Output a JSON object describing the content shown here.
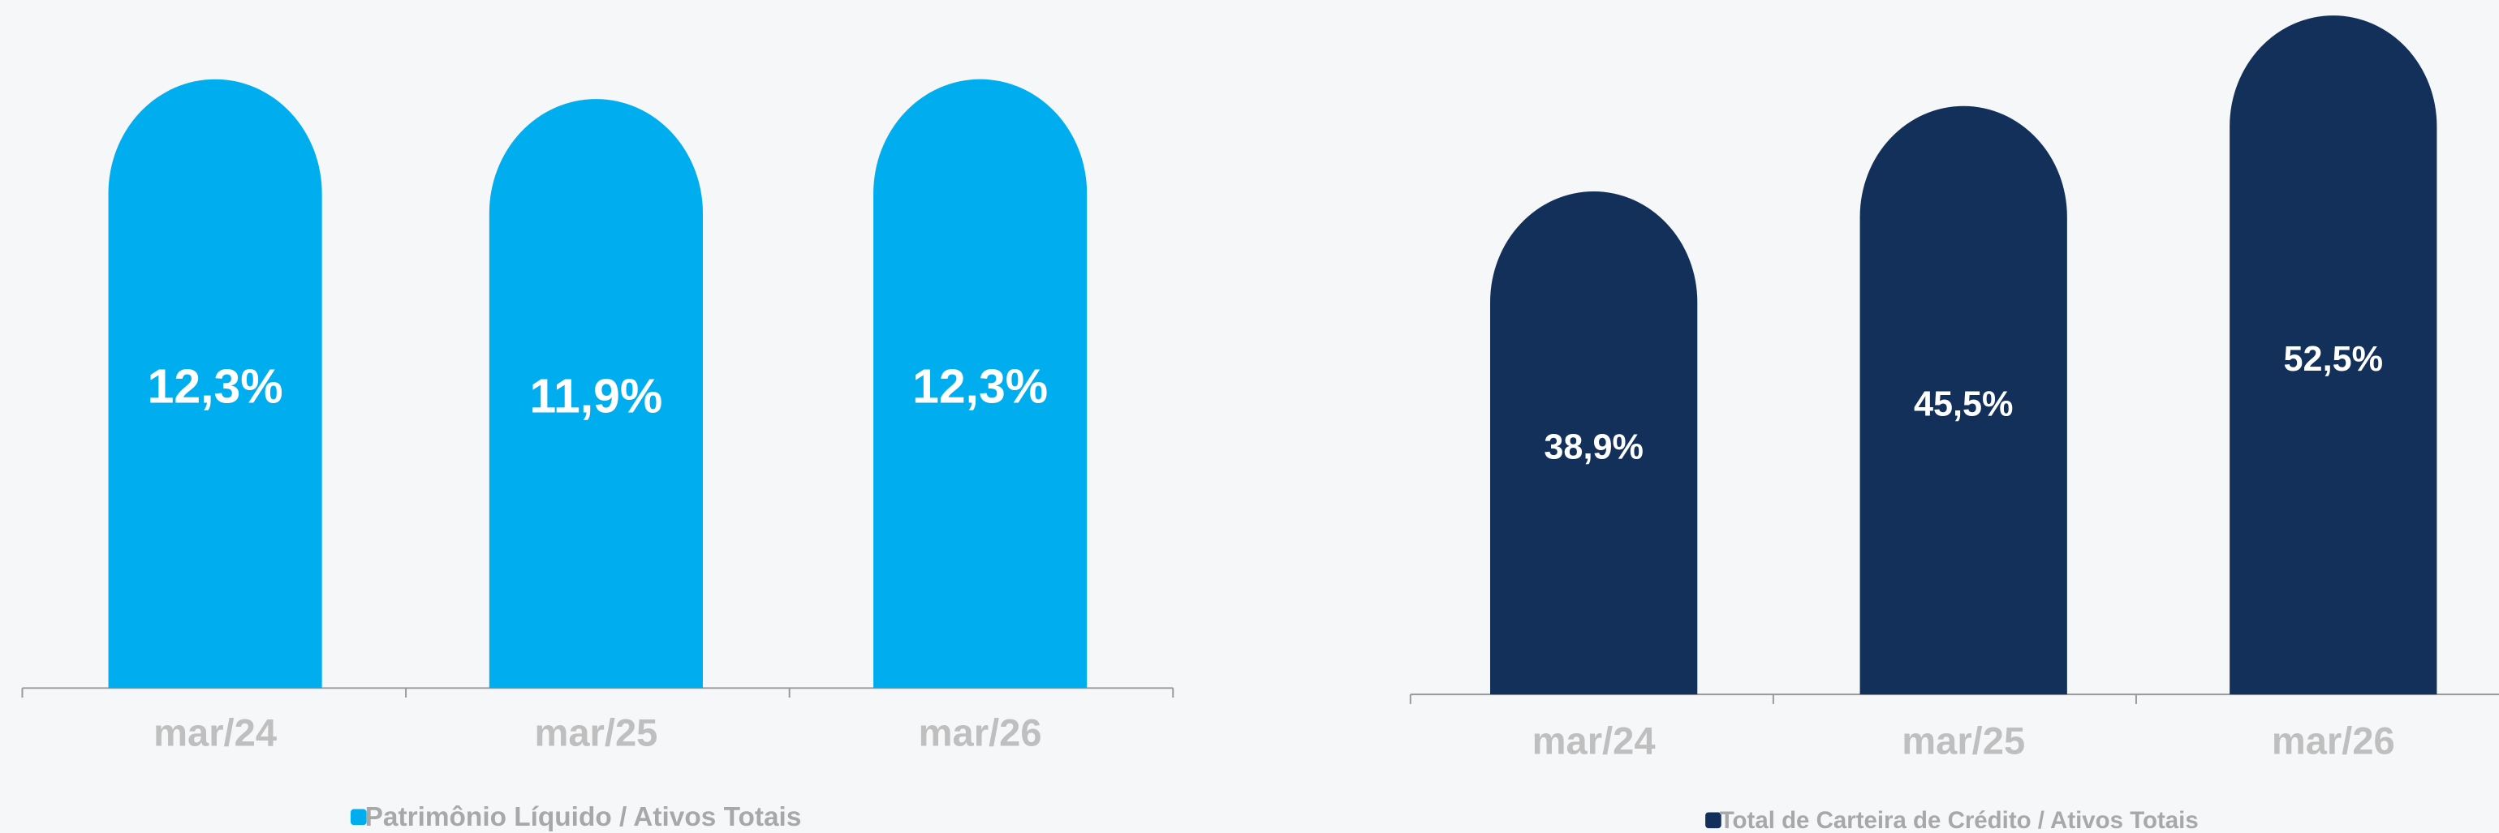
{
  "chart_data": [
    {
      "type": "bar",
      "categories": [
        "mar/24",
        "mar/25",
        "mar/26"
      ],
      "series": [
        {
          "name": "Patrimônio Líquido / Ativos Totais",
          "color": "#00aeef",
          "values": [
            12.3,
            11.9,
            12.3
          ],
          "value_labels": [
            "12,3%",
            "11,9%",
            "12,3%"
          ]
        }
      ],
      "ylim": [
        0,
        13.9
      ]
    },
    {
      "type": "bar",
      "categories": [
        "mar/24",
        "mar/25",
        "mar/26"
      ],
      "series": [
        {
          "name": "Total de Carteira de Crédito / Ativos Totais",
          "color": "#12305a",
          "values": [
            38.9,
            45.5,
            52.5
          ],
          "value_labels": [
            "38,9%",
            "45,5%",
            "52,5%"
          ]
        }
      ],
      "ylim": [
        0,
        53.7
      ]
    }
  ]
}
